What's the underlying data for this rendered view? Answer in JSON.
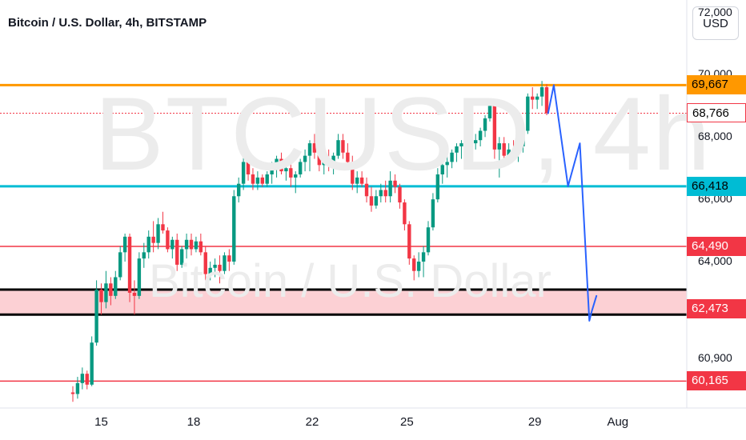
{
  "header": {
    "title": "Bitcoin / U.S. Dollar, 4h, BITSTAMP",
    "currency_button": "USD"
  },
  "watermark": {
    "symbol": "BTCUSD, 4h",
    "name": "Bitcoin / U.S. Dollar"
  },
  "colors": {
    "up": "#089981",
    "down": "#f23645",
    "resistance": "#ff9800",
    "support_cyan": "#00bcd4",
    "red_level": "#f23645",
    "zone_fill": "#fcd0d4",
    "arrow": "#2962ff"
  },
  "chart_data": {
    "type": "candlestick",
    "symbol": "BTCUSD",
    "interval": "4h",
    "exchange": "BITSTAMP",
    "y_ticks": [
      "72,000",
      "70,000",
      "68,000",
      "66,000",
      "64,000",
      "60,900"
    ],
    "x_ticks": [
      "15",
      "18",
      "22",
      "25",
      "29",
      "Aug"
    ],
    "ylim": [
      59300,
      72400
    ],
    "price_tags": [
      {
        "label": "69,667",
        "price": 69667,
        "style": "resistance"
      },
      {
        "label": "68,766",
        "price": 68766,
        "style": "current"
      },
      {
        "label": "66,418",
        "price": 66418,
        "style": "support_cyan"
      },
      {
        "label": "64,490",
        "price": 64490,
        "style": "red_level"
      },
      {
        "label": "62,473",
        "price": 62473,
        "style": "zone"
      },
      {
        "label": "60,165",
        "price": 60165,
        "style": "red_level"
      }
    ],
    "zone": {
      "top": 63100,
      "bottom": 62300
    },
    "candles": [
      [
        59800,
        60000,
        59500,
        59750
      ],
      [
        59750,
        60300,
        59600,
        60100
      ],
      [
        60100,
        60600,
        59900,
        60400
      ],
      [
        60400,
        60500,
        59900,
        60050
      ],
      [
        60050,
        61600,
        60000,
        61400
      ],
      [
        61400,
        63400,
        61300,
        63100
      ],
      [
        63100,
        63300,
        62300,
        62700
      ],
      [
        62700,
        63700,
        62500,
        63300
      ],
      [
        63300,
        63500,
        62600,
        62900
      ],
      [
        62900,
        63700,
        62800,
        63500
      ],
      [
        63500,
        64500,
        63400,
        64300
      ],
      [
        64300,
        64900,
        64000,
        64800
      ],
      [
        64800,
        64900,
        62700,
        63000
      ],
      [
        63000,
        63400,
        62300,
        62900
      ],
      [
        62900,
        64300,
        62800,
        64100
      ],
      [
        64100,
        64600,
        63800,
        64300
      ],
      [
        64300,
        65000,
        64100,
        64800
      ],
      [
        64800,
        65300,
        64300,
        64600
      ],
      [
        64600,
        65400,
        64400,
        65200
      ],
      [
        65200,
        65600,
        64900,
        65000
      ],
      [
        65000,
        65100,
        64300,
        64400
      ],
      [
        64400,
        64800,
        64100,
        64700
      ],
      [
        64700,
        64900,
        63700,
        63900
      ],
      [
        63900,
        64500,
        63800,
        64400
      ],
      [
        64400,
        64900,
        64100,
        64700
      ],
      [
        64700,
        64900,
        64200,
        64400
      ],
      [
        64400,
        64800,
        64300,
        64650
      ],
      [
        64650,
        64900,
        64200,
        64300
      ],
      [
        64300,
        64500,
        63400,
        63600
      ],
      [
        63600,
        64000,
        63400,
        63800
      ],
      [
        63800,
        64100,
        63500,
        63900
      ],
      [
        63900,
        64200,
        63300,
        63700
      ],
      [
        63700,
        64300,
        63600,
        64200
      ],
      [
        64200,
        64400,
        63700,
        64000
      ],
      [
        64000,
        66300,
        63900,
        66100
      ],
      [
        66100,
        66700,
        65900,
        66500
      ],
      [
        66500,
        67400,
        66300,
        67200
      ],
      [
        67200,
        67400,
        66600,
        66800
      ],
      [
        66800,
        67000,
        66300,
        66500
      ],
      [
        66500,
        66900,
        66300,
        66700
      ],
      [
        66700,
        66800,
        66400,
        66500
      ],
      [
        66500,
        66900,
        66400,
        66800
      ],
      [
        66800,
        67200,
        66500,
        67000
      ],
      [
        67000,
        67400,
        66700,
        67300
      ],
      [
        67300,
        67500,
        66800,
        66900
      ],
      [
        66900,
        67100,
        66600,
        67000
      ],
      [
        67000,
        67200,
        66400,
        66700
      ],
      [
        66700,
        66900,
        66200,
        66800
      ],
      [
        66800,
        67300,
        66700,
        67200
      ],
      [
        67200,
        67600,
        66900,
        67400
      ],
      [
        67400,
        67900,
        66900,
        67800
      ],
      [
        67800,
        68100,
        67300,
        67500
      ],
      [
        67500,
        67800,
        66900,
        67100
      ],
      [
        67100,
        67400,
        66800,
        67300
      ],
      [
        67300,
        67600,
        66900,
        67100
      ],
      [
        67100,
        67500,
        66800,
        67400
      ],
      [
        67400,
        68100,
        67300,
        67900
      ],
      [
        67900,
        68100,
        67300,
        67500
      ],
      [
        67500,
        67800,
        67100,
        67200
      ],
      [
        67200,
        67400,
        66300,
        66500
      ],
      [
        66500,
        66900,
        66200,
        66700
      ],
      [
        66700,
        66900,
        66400,
        66500
      ],
      [
        66500,
        66700,
        65900,
        66100
      ],
      [
        66100,
        66400,
        65600,
        65800
      ],
      [
        65800,
        66300,
        65700,
        66100
      ],
      [
        66100,
        66500,
        65900,
        66300
      ],
      [
        66300,
        66600,
        65900,
        66100
      ],
      [
        66100,
        66900,
        65900,
        66600
      ],
      [
        66600,
        66800,
        66200,
        66400
      ],
      [
        66400,
        66500,
        65700,
        65900
      ],
      [
        65900,
        66000,
        65000,
        65200
      ],
      [
        65200,
        65300,
        63900,
        64100
      ],
      [
        64100,
        64200,
        63400,
        63700
      ],
      [
        63700,
        64300,
        63500,
        64000
      ],
      [
        64000,
        64500,
        63500,
        64300
      ],
      [
        64300,
        65300,
        64200,
        65100
      ],
      [
        65100,
        66200,
        65000,
        66000
      ],
      [
        66000,
        67000,
        65900,
        66800
      ],
      [
        66800,
        67300,
        66500,
        67100
      ],
      [
        67100,
        67400,
        66700,
        67200
      ],
      [
        67200,
        67600,
        67000,
        67500
      ],
      [
        67500,
        67800,
        67200,
        67700
      ],
      [
        67700,
        67900,
        67300,
        67800
      ],
      [
        67800,
        68000,
        67400,
        67900
      ],
      [
        67900,
        68000,
        67500,
        67800
      ],
      [
        67800,
        68100,
        67600,
        67900
      ],
      [
        67900,
        68300,
        67700,
        68200
      ],
      [
        68200,
        68700,
        68000,
        68600
      ],
      [
        68600,
        69200,
        68500,
        69000
      ],
      [
        69000,
        69200,
        67300,
        67600
      ],
      [
        67600,
        68000,
        66700,
        67800
      ],
      [
        67800,
        68000,
        67200,
        67400
      ],
      [
        67400,
        67800,
        67200,
        67600
      ],
      [
        67600,
        67900,
        67300,
        67500
      ],
      [
        67500,
        67800,
        67200,
        67700
      ],
      [
        67700,
        68300,
        67500,
        68200
      ],
      [
        68200,
        69400,
        68100,
        69300
      ],
      [
        69300,
        69600,
        68900,
        69200
      ],
      [
        69200,
        69400,
        68900,
        69300
      ],
      [
        69300,
        69800,
        69000,
        69600
      ],
      [
        69600,
        69700,
        68700,
        68766
      ]
    ],
    "projection_path": [
      {
        "candle": 100.3,
        "price": 68766
      },
      {
        "candle": 101.5,
        "price": 69667
      },
      {
        "candle": 104.5,
        "price": 66418
      },
      {
        "candle": 107.0,
        "price": 67800
      },
      {
        "candle": 109.0,
        "price": 62100
      },
      {
        "candle": 109.5,
        "price": 62400
      },
      {
        "candle": 110.5,
        "price": 62900
      }
    ]
  }
}
